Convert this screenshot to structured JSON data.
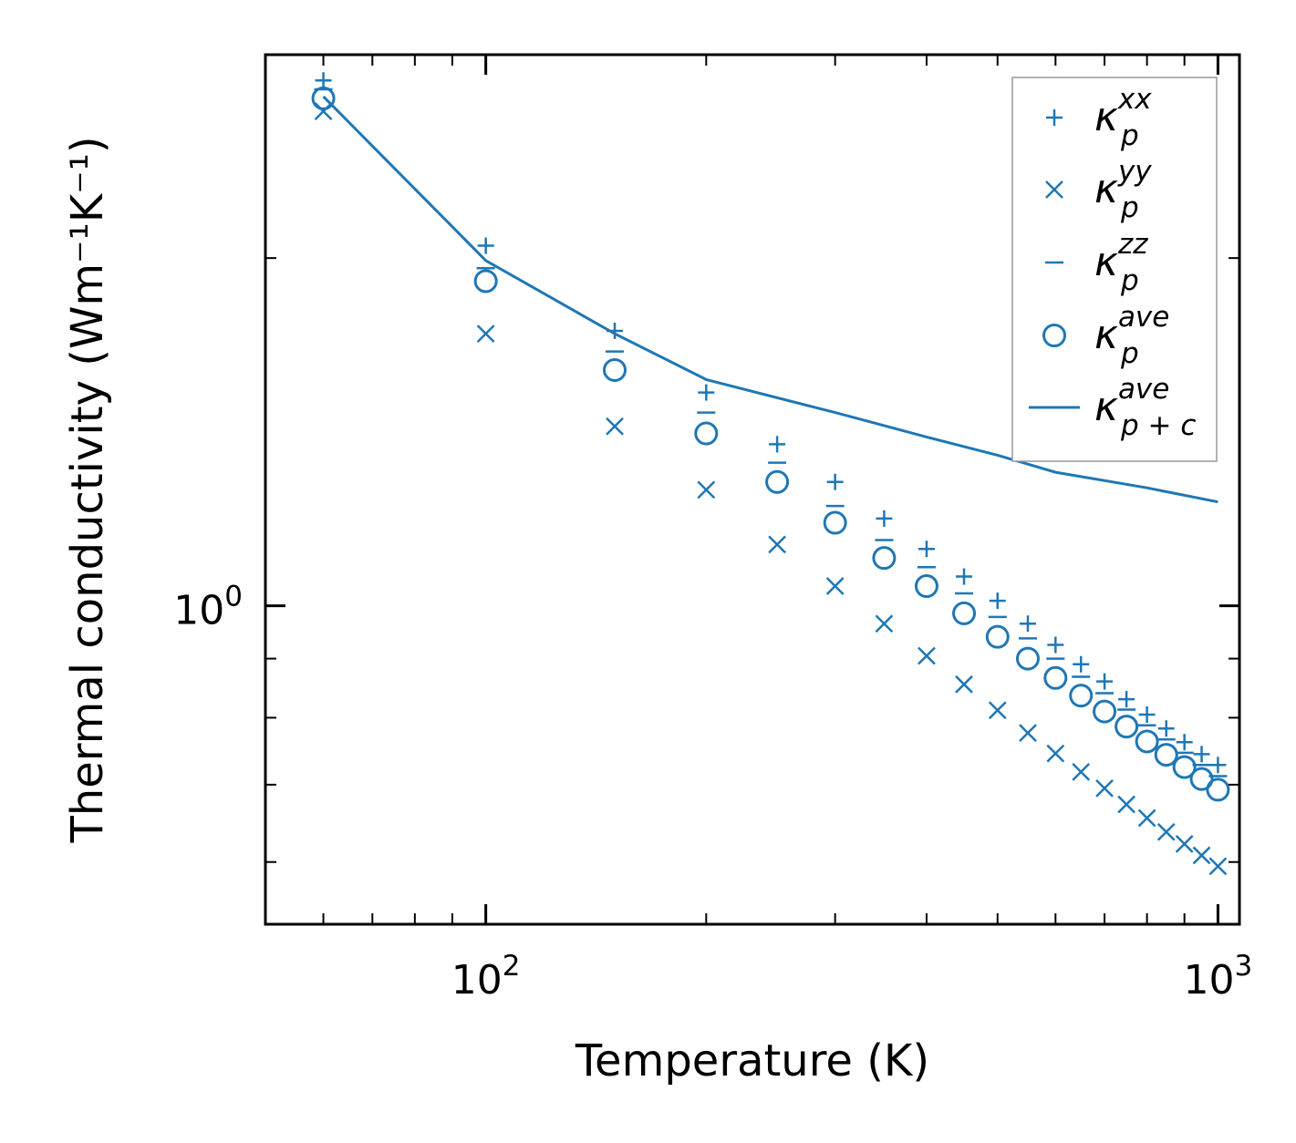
{
  "chart_data": {
    "type": "scatter",
    "xscale": "log",
    "yscale": "log",
    "xlabel": "Temperature (K)",
    "ylabel": "Thermal conductivity (Wm⁻¹K⁻¹)",
    "xlim": [
      50,
      1070
    ],
    "ylim": [
      0.53,
      3.0
    ],
    "x_ticks": [
      {
        "value": 100,
        "base": "10",
        "exp": "2"
      },
      {
        "value": 1000,
        "base": "10",
        "exp": "3"
      }
    ],
    "y_ticks": [
      {
        "value": 1,
        "base": "10",
        "exp": "0"
      }
    ],
    "color": "#1f77b4",
    "x": [
      60,
      100,
      150,
      200,
      250,
      300,
      350,
      400,
      450,
      500,
      550,
      600,
      650,
      700,
      750,
      800,
      850,
      900,
      950,
      1000
    ],
    "series": [
      {
        "name": "kxx",
        "legend": {
          "base": "κ",
          "sup": "xx",
          "sub": "p"
        },
        "marker": "plus",
        "values": [
          2.85,
          2.05,
          1.73,
          1.53,
          1.38,
          1.28,
          1.19,
          1.12,
          1.06,
          1.01,
          0.965,
          0.925,
          0.89,
          0.86,
          0.83,
          0.805,
          0.783,
          0.762,
          0.744,
          0.728
        ]
      },
      {
        "name": "kyy",
        "legend": {
          "base": "κ",
          "sup": "yy",
          "sub": "p"
        },
        "marker": "x",
        "values": [
          2.68,
          1.72,
          1.43,
          1.26,
          1.13,
          1.04,
          0.965,
          0.905,
          0.855,
          0.812,
          0.776,
          0.745,
          0.718,
          0.695,
          0.673,
          0.655,
          0.637,
          0.622,
          0.608,
          0.595
        ]
      },
      {
        "name": "kzz",
        "legend": {
          "base": "κ",
          "sup": "zz",
          "sub": "p"
        },
        "marker": "hline",
        "values": [
          2.8,
          1.96,
          1.66,
          1.47,
          1.33,
          1.22,
          1.14,
          1.08,
          1.025,
          0.978,
          0.937,
          0.9,
          0.868,
          0.84,
          0.813,
          0.788,
          0.766,
          0.746,
          0.728,
          0.712
        ]
      },
      {
        "name": "kave",
        "legend": {
          "base": "κ",
          "sup": "ave",
          "sub": "p"
        },
        "marker": "circle",
        "values": [
          2.75,
          1.91,
          1.6,
          1.41,
          1.28,
          1.18,
          1.1,
          1.04,
          0.985,
          0.94,
          0.9,
          0.866,
          0.836,
          0.81,
          0.786,
          0.763,
          0.743,
          0.725,
          0.708,
          0.693
        ]
      },
      {
        "name": "kpc",
        "legend": {
          "base": "κ",
          "sup": "ave",
          "sub": "p + c"
        },
        "marker": "line",
        "values": [
          2.76,
          1.99,
          1.72,
          1.57,
          1.47,
          1.4,
          1.35,
          1.305,
          1.265,
          1.23
        ]
      }
    ],
    "line_x": [
      60,
      100,
      150,
      200,
      300,
      400,
      500,
      600,
      800,
      1000
    ],
    "legend_position": "top-right"
  }
}
